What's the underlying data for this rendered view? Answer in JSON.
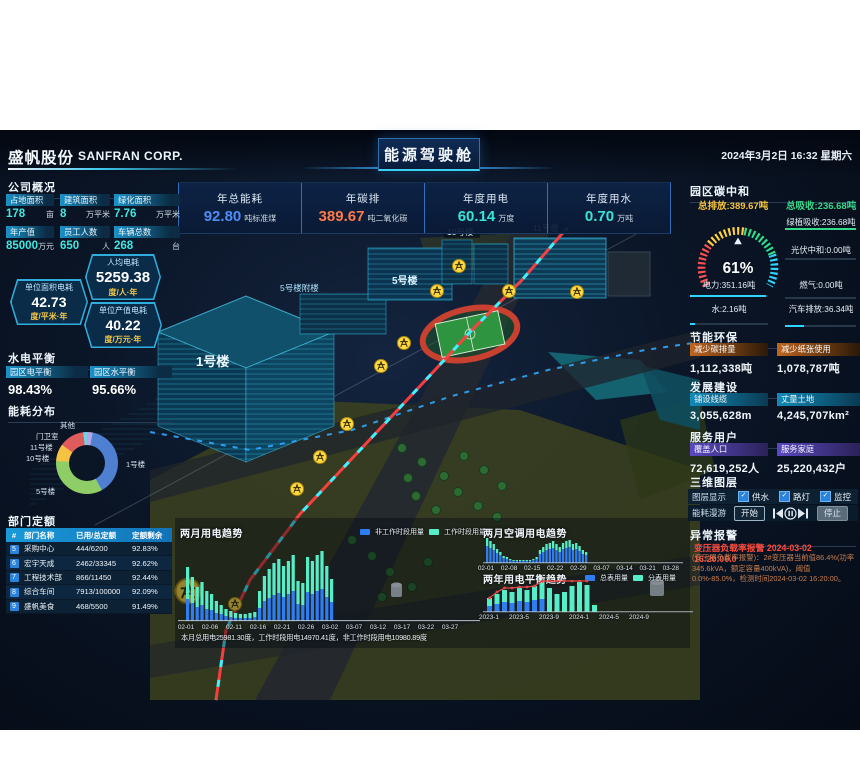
{
  "header": {
    "company_cn": "盛帆股份",
    "company_en": "SANFRAN CORP.",
    "dashboard_title": "能源驾驶舱",
    "datetime": "2024年3月2日 16:32 星期六"
  },
  "kpi_cards": [
    {
      "label": "年总能耗",
      "value": "92.80",
      "unit": "吨标准煤",
      "color": "#4d8df5"
    },
    {
      "label": "年碳排",
      "value": "389.67",
      "unit": "吨二氧化碳",
      "color": "#ff7a45"
    },
    {
      "label": "年度用电",
      "value": "60.14",
      "unit": "万度",
      "color": "#38e6d6"
    },
    {
      "label": "年度用水",
      "value": "0.70",
      "unit": "万吨",
      "color": "#38e6d6"
    }
  ],
  "company_overview": {
    "title": "公司概况",
    "stats": [
      {
        "label": "占地面积",
        "value": "178",
        "unit": "亩"
      },
      {
        "label": "建筑面积",
        "value": "8",
        "unit": "万平米"
      },
      {
        "label": "绿化面积",
        "value": "7.76",
        "unit": "万平米"
      },
      {
        "label": "年产值",
        "value": "85000",
        "unit": "万元"
      },
      {
        "label": "员工人数",
        "value": "650",
        "unit": "人"
      },
      {
        "label": "车辆总数",
        "value": "268",
        "unit": "台"
      }
    ]
  },
  "intensity_badges": [
    {
      "label": "人均电耗",
      "value": "5259.38",
      "unit": "度/人·年"
    },
    {
      "label": "单位面积电耗",
      "value": "42.73",
      "unit": "度/平米·年"
    },
    {
      "label": "单位产值电耗",
      "value": "40.22",
      "unit": "度/万元·年"
    }
  ],
  "utility_balance": {
    "title": "水电平衡",
    "items": [
      {
        "label": "园区电平衡",
        "value": "98.43%"
      },
      {
        "label": "园区水平衡",
        "value": "95.66%"
      }
    ]
  },
  "energy_distribution": {
    "title": "能耗分布",
    "chart_data": {
      "type": "pie",
      "labels": [
        "其他",
        "1号楼",
        "5号楼",
        "10号楼",
        "11号楼",
        "门卫室"
      ],
      "values": [
        3,
        39,
        34,
        9,
        13,
        2
      ],
      "colors": [
        "#b9a3e8",
        "#4e7fd0",
        "#8fce66",
        "#f5c242",
        "#e05c5c",
        "#6fd3e8"
      ]
    }
  },
  "dept_quota": {
    "title": "部门定额",
    "headers": [
      "#",
      "部门名称",
      "已用/总定额",
      "定额剩余"
    ],
    "rows": [
      {
        "idx": "5",
        "name": "采购中心",
        "used": "444/6200",
        "remain": "92.83%"
      },
      {
        "idx": "6",
        "name": "宏宇天成",
        "used": "2462/33345",
        "remain": "92.62%"
      },
      {
        "idx": "7",
        "name": "工程技术部",
        "used": "866/11450",
        "remain": "92.44%"
      },
      {
        "idx": "8",
        "name": "综合车间",
        "used": "7913/100000",
        "remain": "92.09%"
      },
      {
        "idx": "9",
        "name": "盛帆美食",
        "used": "468/5500",
        "remain": "91.49%"
      }
    ]
  },
  "map": {
    "building_labels": [
      "1号楼",
      "5号楼附楼",
      "5号楼",
      "10号楼",
      "11号楼"
    ]
  },
  "electricity_trend": {
    "title": "两月用电趋势",
    "legend": [
      "非工作时段用量",
      "工作时段用量"
    ],
    "summary": "本月总用电25981.30度，工作时段用电14970.41度，非工作时段用电10980.89度",
    "chart_data": {
      "type": "bar",
      "stacked": true,
      "x_labels": [
        "02-01",
        "02-06",
        "02-11",
        "02-16",
        "02-21",
        "02-26",
        "03-02",
        "03-07",
        "03-12",
        "03-17",
        "03-22",
        "03-27"
      ],
      "series": [
        {
          "name": "非工作时段用量",
          "color": "#2e7ef2",
          "values": [
            22,
            18,
            14,
            16,
            12,
            11,
            8,
            7,
            5,
            4,
            3,
            3,
            3,
            3,
            4,
            13,
            20,
            23,
            26,
            28,
            24,
            27,
            30,
            17,
            16,
            29,
            27,
            30,
            32,
            24,
            19
          ]
        },
        {
          "name": "工作时段用量",
          "color": "#55eec8",
          "values": [
            32,
            26,
            20,
            23,
            18,
            16,
            12,
            9,
            7,
            6,
            5,
            4,
            4,
            5,
            5,
            17,
            25,
            29,
            32,
            34,
            31,
            33,
            36,
            23,
            22,
            35,
            33,
            36,
            38,
            31,
            23
          ]
        }
      ]
    }
  },
  "ac_trend": {
    "title": "两月空调用电趋势",
    "chart_data": {
      "type": "bar",
      "stacked": true,
      "x_labels": [
        "02-01",
        "02-08",
        "02-15",
        "02-22",
        "02-29",
        "03-07",
        "03-14",
        "03-21",
        "03-28"
      ],
      "series": [
        {
          "name": "非工作时段用量",
          "color": "#2e7ef2",
          "values": [
            17,
            15,
            13,
            10,
            8,
            5,
            4,
            3,
            2,
            2,
            2,
            2,
            2,
            2,
            3,
            4,
            9,
            11,
            13,
            14,
            15,
            13,
            11,
            14,
            15,
            16,
            13,
            14,
            12,
            9,
            8
          ]
        },
        {
          "name": "工作时段用量",
          "color": "#55eec8",
          "values": [
            8,
            7,
            6,
            4,
            3,
            2,
            2,
            1,
            1,
            1,
            1,
            1,
            1,
            1,
            1,
            2,
            4,
            5,
            6,
            6,
            7,
            6,
            5,
            6,
            7,
            7,
            6,
            6,
            5,
            4,
            3
          ]
        }
      ]
    }
  },
  "yearly_balance": {
    "title": "两年用电平衡趋势",
    "legend": [
      "总表用量",
      "分表用量"
    ],
    "chart_data": {
      "type": "bar+line",
      "x_labels": [
        "2023-1",
        "2023-5",
        "2023-9",
        "2024-1",
        "2024-5",
        "2024-9"
      ],
      "series": [
        {
          "name": "总表用量",
          "color": "#2e7ef2",
          "values": [
            6,
            8,
            10,
            9,
            11,
            10,
            12,
            13,
            0,
            0,
            0,
            0,
            0,
            0,
            0
          ]
        },
        {
          "name": "分表用量",
          "color": "#55eec8",
          "values": [
            8,
            10,
            12,
            11,
            13,
            12,
            14,
            16,
            24,
            18,
            20,
            26,
            30,
            27,
            7
          ]
        }
      ],
      "line": {
        "name": "平衡趋势",
        "color": "#e04848",
        "values": [
          14,
          20,
          24,
          24,
          25,
          25,
          26,
          31,
          31,
          31,
          31,
          31,
          31,
          31
        ]
      }
    }
  },
  "carbon": {
    "title": "园区碳中和",
    "emission": "总排放:389.67吨",
    "absorb": "总吸收:236.68吨",
    "gauge": "61%",
    "rows": [
      {
        "text": "绿植吸收:236.68吨",
        "fill": 1,
        "color": "#35d98a"
      },
      {
        "text": "光伏中和:0.00吨",
        "fill": 0,
        "color": "#2fd4ff"
      },
      {
        "text": "电力:351.16吨",
        "fill": 0.97,
        "color": "#2fd4ff"
      },
      {
        "text": "燃气:0.00吨",
        "fill": 0,
        "color": "#2fd4ff"
      },
      {
        "text": "水:2.16吨",
        "fill": 0.06,
        "color": "#2fd4ff"
      },
      {
        "text": "汽车排放:36.34吨",
        "fill": 0.27,
        "color": "#2fd4ff"
      }
    ]
  },
  "env_section": {
    "title": "节能环保",
    "items": [
      {
        "label": "减少碳排量",
        "value": "1,112,338吨"
      },
      {
        "label": "减少纸张使用",
        "value": "1,078,787吨"
      }
    ]
  },
  "dev_section": {
    "title": "发展建设",
    "items": [
      {
        "label": "铺设线缆",
        "value": "3,055,628m"
      },
      {
        "label": "丈量土地",
        "value": "4,245,707km²"
      }
    ]
  },
  "service_section": {
    "title": "服务用户",
    "items": [
      {
        "label": "覆盖人口",
        "value": "72,619,252人"
      },
      {
        "label": "服务家庭",
        "value": "25,220,432户"
      }
    ]
  },
  "layers_section": {
    "title": "三维图层",
    "row1_label": "图层显示",
    "checkboxes": [
      "供水",
      "路灯",
      "监控"
    ],
    "row2_label": "能耗漫游",
    "start_btn": "开始",
    "stop_btn": "停止"
  },
  "alarm_section": {
    "title": "异常报警",
    "alarm_title": "变压器负载率报警 2024-03-02 16:20:00.0",
    "alarm_detail": "(变压器负载率报警)：2#变压器当前值86.4%(功率345.6kVA，额定容量400kVA)，阈值0.0%-85.0%，检测时间2024-03-02 16:20:00。"
  }
}
